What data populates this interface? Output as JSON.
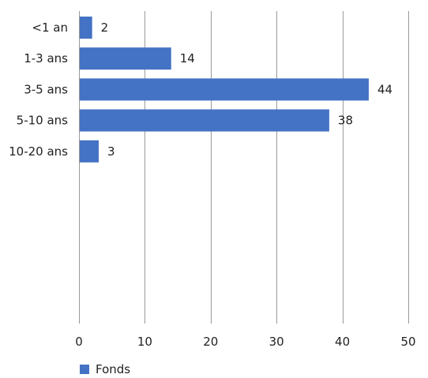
{
  "chart_data": {
    "type": "bar",
    "orientation": "horizontal",
    "categories": [
      "<1 an",
      "1-3 ans",
      "3-5 ans",
      "5-10 ans",
      "10-20 ans"
    ],
    "series": [
      {
        "name": "Fonds",
        "values": [
          2,
          14,
          44,
          38,
          3
        ],
        "color": "#4472C4"
      }
    ],
    "xlim": [
      0,
      50
    ],
    "x_ticks": [
      0,
      10,
      20,
      30,
      40,
      50
    ],
    "grid": true,
    "legend": "bottom-left",
    "data_labels": true
  }
}
